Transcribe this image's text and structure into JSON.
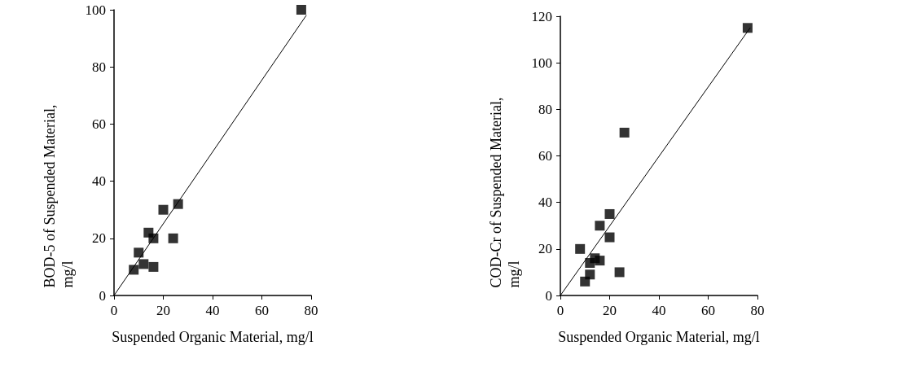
{
  "chart_data": [
    {
      "type": "scatter",
      "xlabel": "Suspended Organic Material, mg/l",
      "ylabel": "BOD-5 of Suspended Material, mg/l",
      "xlim": [
        0,
        80
      ],
      "xticks": [
        0,
        20,
        40,
        60,
        80
      ],
      "ylim": [
        0,
        100
      ],
      "yticks": [
        0,
        20,
        40,
        60,
        80,
        100
      ],
      "grid": false,
      "marker": "square",
      "series": [
        {
          "color": "#000000",
          "x": [
            8,
            10,
            12,
            14,
            16,
            16,
            20,
            24,
            26,
            76
          ],
          "values": [
            9,
            15,
            11,
            22,
            20,
            10,
            30,
            20,
            32,
            100
          ]
        },
        {
          "type": "line",
          "color": "#000000",
          "marker": "none",
          "x": [
            0,
            78
          ],
          "values": [
            0,
            98
          ]
        }
      ]
    },
    {
      "type": "scatter",
      "xlabel": "Suspended Organic Material, mg/l",
      "ylabel": "COD-Cr of Suspended Material, mg/l",
      "xlim": [
        0,
        80
      ],
      "xticks": [
        0,
        20,
        40,
        60,
        80
      ],
      "ylim": [
        0,
        120
      ],
      "yticks": [
        0,
        20,
        40,
        60,
        80,
        100,
        120
      ],
      "grid": false,
      "marker": "square",
      "series": [
        {
          "color": "#000000",
          "x": [
            8,
            12,
            12,
            10,
            14,
            16,
            16,
            20,
            20,
            24,
            26,
            76
          ],
          "values": [
            20,
            14,
            9,
            6,
            16,
            15,
            30,
            35,
            25,
            10,
            70,
            115
          ]
        },
        {
          "type": "line",
          "color": "#000000",
          "marker": "none",
          "x": [
            0,
            77
          ],
          "values": [
            0,
            115
          ]
        }
      ]
    }
  ]
}
